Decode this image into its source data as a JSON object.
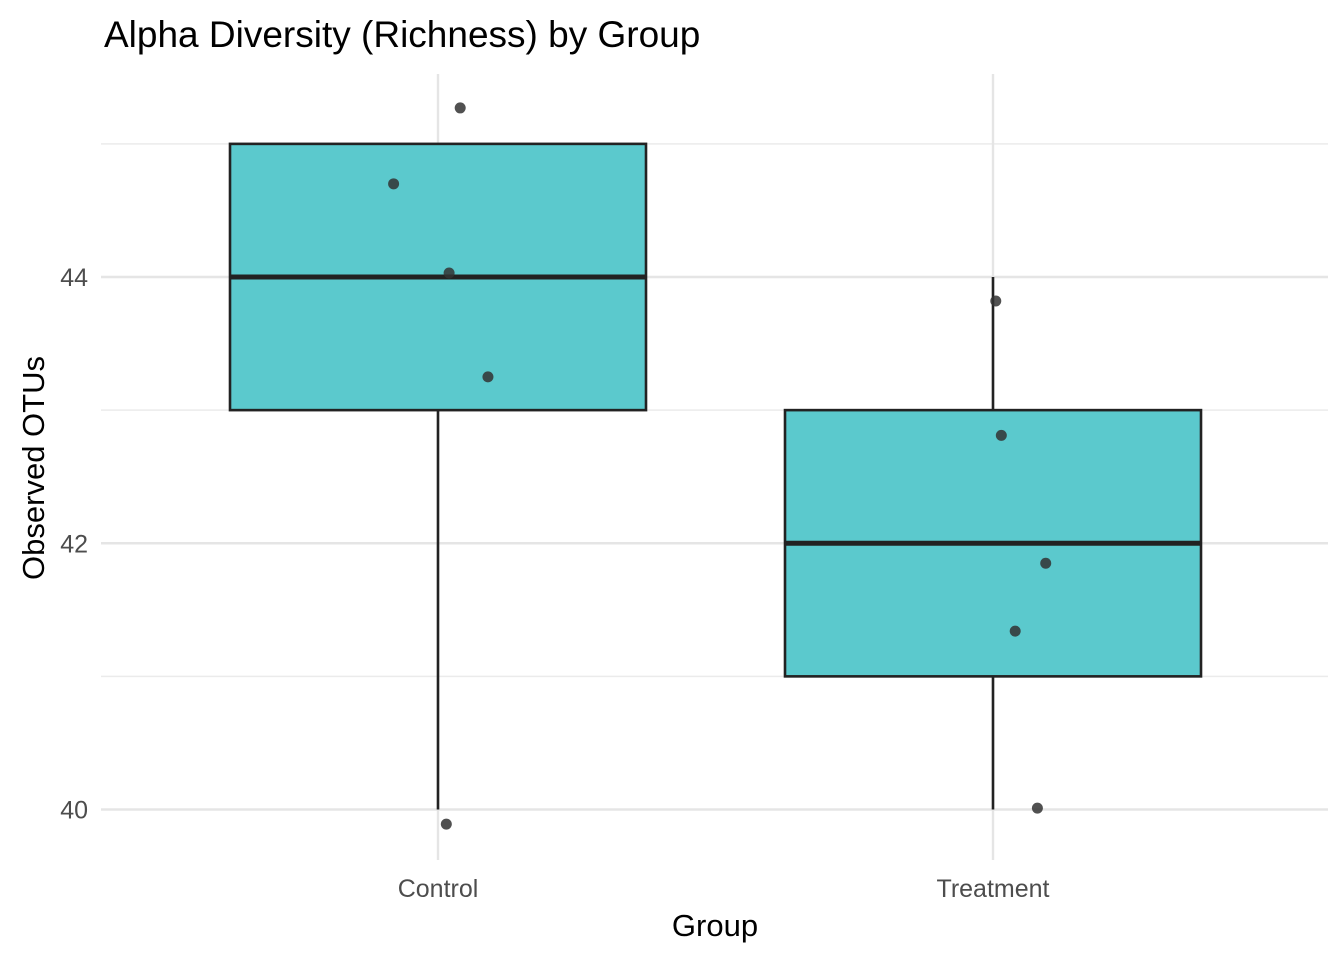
{
  "chart_data": {
    "type": "box",
    "title": "Alpha Diversity (Richness) by Group",
    "xlabel": "Group",
    "ylabel": "Observed OTUs",
    "categories": [
      "Control",
      "Treatment"
    ],
    "ylim": [
      39.7,
      45.5
    ],
    "yticks": [
      40,
      42,
      44
    ],
    "grid": true,
    "colors": {
      "box_fill": "#5bc9cd",
      "box_stroke": "#222222",
      "point": "#333333"
    },
    "boxes": [
      {
        "group": "Control",
        "whisker_low": 40,
        "q1": 43,
        "median": 44,
        "q3": 45,
        "whisker_high": 45
      },
      {
        "group": "Treatment",
        "whisker_low": 40,
        "q1": 41,
        "median": 42,
        "q3": 43,
        "whisker_high": 44
      }
    ],
    "points": [
      {
        "group": "Control",
        "jitter": 0.04,
        "y": 45.27
      },
      {
        "group": "Control",
        "jitter": -0.08,
        "y": 44.7
      },
      {
        "group": "Control",
        "jitter": 0.02,
        "y": 44.03
      },
      {
        "group": "Control",
        "jitter": 0.09,
        "y": 43.25
      },
      {
        "group": "Control",
        "jitter": 0.015,
        "y": 39.89
      },
      {
        "group": "Treatment",
        "jitter": 0.005,
        "y": 43.82
      },
      {
        "group": "Treatment",
        "jitter": 0.015,
        "y": 42.81
      },
      {
        "group": "Treatment",
        "jitter": 0.095,
        "y": 41.85
      },
      {
        "group": "Treatment",
        "jitter": 0.04,
        "y": 41.34
      },
      {
        "group": "Treatment",
        "jitter": 0.08,
        "y": 40.01
      }
    ]
  }
}
